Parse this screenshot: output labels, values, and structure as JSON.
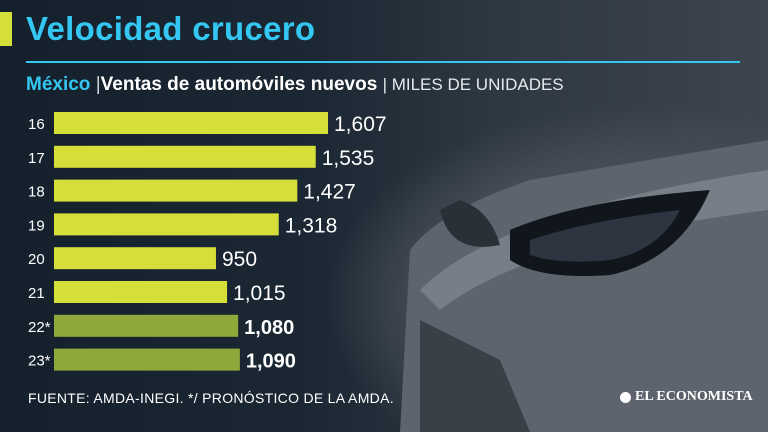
{
  "header": {
    "title": "Velocidad crucero",
    "country": "México",
    "separator": "|",
    "subtitle": "Ventas de automóviles nuevos",
    "unit": "| MILES DE UNIDADES"
  },
  "footer": {
    "source": "FUENTE: AMDA-INEGI. */ PRONÓSTICO DE LA AMDA.",
    "brand": "EL ECONOMISTA"
  },
  "colors": {
    "accent": "#33c7f2",
    "bar": "#d6de3a",
    "bar_forecast": "#8fa83a"
  },
  "chart_data": {
    "type": "bar",
    "orientation": "horizontal",
    "title": "Ventas de automóviles nuevos",
    "unit": "MILES DE UNIDADES",
    "categories": [
      "16",
      "17",
      "18",
      "19",
      "20",
      "21",
      "22*",
      "23*"
    ],
    "values": [
      1607,
      1535,
      1427,
      1318,
      950,
      1015,
      1080,
      1090
    ],
    "value_labels": [
      "1,607",
      "1,535",
      "1,427",
      "1,318",
      "950",
      "1,015",
      "1,080",
      "1,090"
    ],
    "forecast": [
      false,
      false,
      false,
      false,
      false,
      false,
      true,
      true
    ],
    "grid": false,
    "legend": "none"
  }
}
